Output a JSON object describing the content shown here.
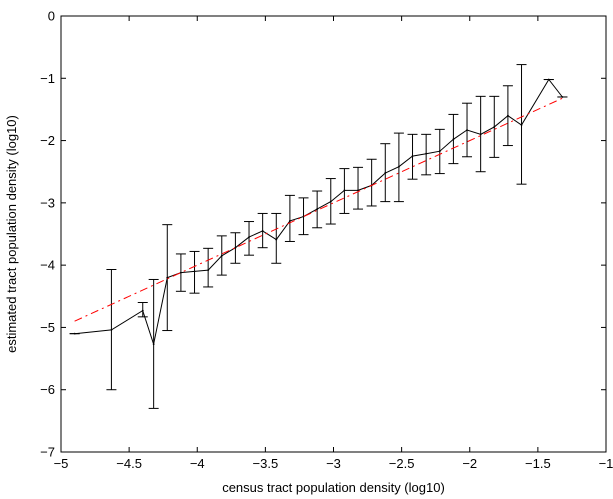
{
  "chart_data": {
    "type": "line",
    "title": "",
    "xlabel": "census tract population density (log10)",
    "ylabel": "estimated tract population density (log10)",
    "xlim": [
      -5,
      -1
    ],
    "ylim": [
      -7,
      0
    ],
    "xticks": [
      -5,
      -4.5,
      -4,
      -3.5,
      -3,
      -2.5,
      -2,
      -1.5,
      -1
    ],
    "yticks": [
      -7,
      -6,
      -5,
      -4,
      -3,
      -2,
      -1,
      0
    ],
    "xtick_labels": [
      "−5",
      "−4.5",
      "−4",
      "−3.5",
      "−3",
      "−2.5",
      "−2",
      "−1.5",
      "−1"
    ],
    "ytick_labels": [
      "−7",
      "−6",
      "−5",
      "−4",
      "−3",
      "−2",
      "−1",
      "0"
    ],
    "grid": false,
    "series": [
      {
        "style": "solid",
        "color": "#000000",
        "points": [
          {
            "x": -4.9,
            "y": -5.1,
            "lo": -5.1,
            "hi": -5.1
          },
          {
            "x": -4.63,
            "y": -5.04,
            "lo": -6.0,
            "hi": -4.07
          },
          {
            "x": -4.4,
            "y": -4.73,
            "lo": -4.83,
            "hi": -4.6
          },
          {
            "x": -4.32,
            "y": -5.27,
            "lo": -6.3,
            "hi": -4.23
          },
          {
            "x": -4.22,
            "y": -4.2,
            "lo": -5.05,
            "hi": -3.35
          },
          {
            "x": -4.12,
            "y": -4.12,
            "lo": -4.42,
            "hi": -3.82
          },
          {
            "x": -4.02,
            "y": -4.1,
            "lo": -4.45,
            "hi": -3.78
          },
          {
            "x": -3.92,
            "y": -4.08,
            "lo": -4.35,
            "hi": -3.73
          },
          {
            "x": -3.82,
            "y": -3.85,
            "lo": -4.16,
            "hi": -3.53
          },
          {
            "x": -3.72,
            "y": -3.72,
            "lo": -3.97,
            "hi": -3.48
          },
          {
            "x": -3.62,
            "y": -3.55,
            "lo": -3.84,
            "hi": -3.3
          },
          {
            "x": -3.52,
            "y": -3.45,
            "lo": -3.72,
            "hi": -3.17
          },
          {
            "x": -3.42,
            "y": -3.59,
            "lo": -3.97,
            "hi": -3.17
          },
          {
            "x": -3.32,
            "y": -3.29,
            "lo": -3.62,
            "hi": -2.88
          },
          {
            "x": -3.22,
            "y": -3.22,
            "lo": -3.51,
            "hi": -2.92
          },
          {
            "x": -3.12,
            "y": -3.1,
            "lo": -3.4,
            "hi": -2.81
          },
          {
            "x": -3.02,
            "y": -2.98,
            "lo": -3.34,
            "hi": -2.61
          },
          {
            "x": -2.92,
            "y": -2.8,
            "lo": -3.17,
            "hi": -2.45
          },
          {
            "x": -2.82,
            "y": -2.8,
            "lo": -3.1,
            "hi": -2.43
          },
          {
            "x": -2.72,
            "y": -2.72,
            "lo": -3.05,
            "hi": -2.3
          },
          {
            "x": -2.62,
            "y": -2.52,
            "lo": -2.98,
            "hi": -2.05
          },
          {
            "x": -2.52,
            "y": -2.42,
            "lo": -2.98,
            "hi": -1.88
          },
          {
            "x": -2.42,
            "y": -2.25,
            "lo": -2.62,
            "hi": -1.9
          },
          {
            "x": -2.32,
            "y": -2.21,
            "lo": -2.55,
            "hi": -1.9
          },
          {
            "x": -2.22,
            "y": -2.17,
            "lo": -2.53,
            "hi": -1.82
          },
          {
            "x": -2.12,
            "y": -1.98,
            "lo": -2.37,
            "hi": -1.58
          },
          {
            "x": -2.02,
            "y": -1.83,
            "lo": -2.26,
            "hi": -1.4
          },
          {
            "x": -1.92,
            "y": -1.9,
            "lo": -2.5,
            "hi": -1.29
          },
          {
            "x": -1.82,
            "y": -1.78,
            "lo": -2.27,
            "hi": -1.29
          },
          {
            "x": -1.72,
            "y": -1.6,
            "lo": -2.08,
            "hi": -1.12
          },
          {
            "x": -1.62,
            "y": -1.75,
            "lo": -2.7,
            "hi": -0.78
          },
          {
            "x": -1.42,
            "y": -1.02,
            "lo": -1.02,
            "hi": -1.02
          },
          {
            "x": -1.32,
            "y": -1.3,
            "lo": -1.3,
            "hi": -1.3
          }
        ]
      },
      {
        "style": "dash-dot",
        "color": "#ff0000",
        "points": [
          {
            "x": -4.9,
            "y": -4.9
          },
          {
            "x": -1.3,
            "y": -1.3
          }
        ]
      }
    ]
  }
}
